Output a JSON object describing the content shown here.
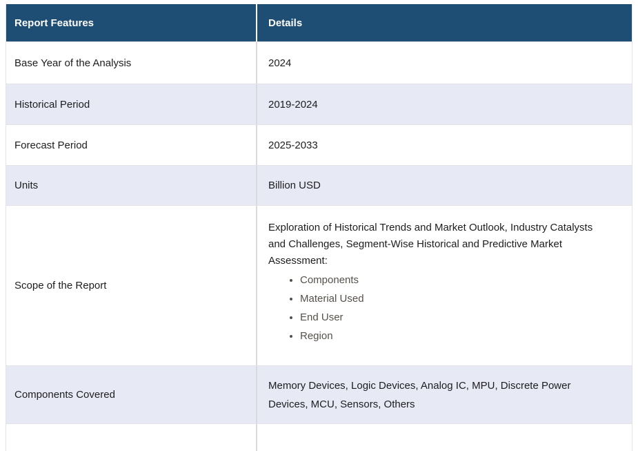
{
  "theme": {
    "header-bg": "#1f4e74",
    "header-text": "#ffffff",
    "row-bg": "#ffffff",
    "row-alt-bg": "#e7e9f5",
    "text": "#1d1d1f",
    "bullet-text": "#55504a",
    "divider": "#d9d9de",
    "header-divider": "#ffffff",
    "row-border": "#e2e2e8",
    "page-bg": "#ffffff"
  },
  "table": {
    "columns": [
      {
        "label": "Report Features"
      },
      {
        "label": "Details"
      }
    ],
    "rows": [
      {
        "feature": "Base Year of the Analysis",
        "detail": "2024"
      },
      {
        "feature": "Historical Period",
        "detail": "2019-2024"
      },
      {
        "feature": "Forecast Period",
        "detail": "2025-2033"
      },
      {
        "feature": "Units",
        "detail": "Billion USD"
      },
      {
        "feature": "Scope of the Report",
        "detail_intro": "Exploration of Historical Trends and Market Outlook, Industry Catalysts and Challenges, Segment-Wise Historical and Predictive Market Assessment:",
        "detail_bullets": [
          "Components",
          "Material Used",
          "End User",
          "Region"
        ]
      },
      {
        "feature": "Components Covered",
        "detail": "Memory Devices, Logic Devices, Analog IC, MPU, Discrete Power Devices, MCU, Sensors, Others"
      }
    ]
  }
}
